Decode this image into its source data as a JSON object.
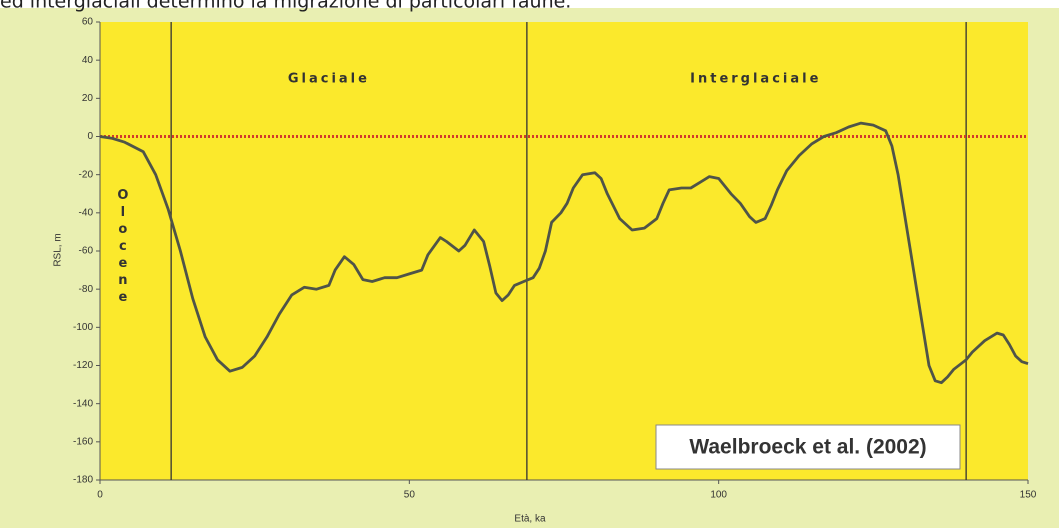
{
  "caption": "ed interglaciali determinò la migrazione di particolari faune.",
  "chart_data": {
    "type": "line",
    "xlabel": "Età, ka",
    "ylabel": "RSL, m",
    "annotation": "Waelbroeck et al. (2002)",
    "period_labels": [
      {
        "text": "Olocene",
        "x": 3.7
      },
      {
        "text": "Glaciale",
        "x": 37
      },
      {
        "text": "Interglaciale",
        "x": 106
      }
    ],
    "dividers": [
      11.5,
      69,
      140
    ],
    "hline": 0,
    "hline_color": "#d23a2a",
    "xlim": [
      0,
      150
    ],
    "xticks": [
      0,
      50,
      100,
      150
    ],
    "ylim": [
      -180,
      60
    ],
    "yticks": [
      60,
      40,
      20,
      0,
      -20,
      -40,
      -60,
      -80,
      -100,
      -120,
      -140,
      -160,
      -180
    ],
    "x": [
      0,
      2,
      4,
      7,
      9,
      11,
      13,
      15,
      17,
      19,
      21,
      23,
      25,
      27,
      29,
      31,
      33,
      35,
      37,
      38,
      39.5,
      41,
      42.5,
      44,
      46,
      48,
      50,
      52,
      53,
      55,
      56,
      58,
      59,
      60.5,
      62,
      63,
      64,
      65,
      66,
      67,
      68.5,
      70,
      71,
      72,
      73,
      74.5,
      75.5,
      76.5,
      78,
      80,
      81,
      82,
      84,
      86,
      88,
      90,
      91,
      92,
      94,
      95.5,
      97,
      98.5,
      100,
      102,
      103.5,
      105,
      106,
      107.5,
      108.5,
      109.5,
      111,
      113,
      115,
      117,
      119,
      121,
      123,
      125,
      127,
      128,
      129,
      130,
      131,
      132,
      133,
      134,
      135,
      136,
      137,
      138,
      140,
      141,
      143,
      145,
      146,
      147,
      148,
      149,
      150
    ],
    "series": [
      {
        "name": "RSL",
        "color": "#4f5448",
        "values": [
          0,
          -1,
          -3,
          -8,
          -20,
          -38,
          -60,
          -85,
          -105,
          -117,
          -123,
          -121,
          -115,
          -105,
          -93,
          -83,
          -79,
          -80,
          -78,
          -70,
          -63,
          -67,
          -75,
          -76,
          -74,
          -74,
          -72,
          -70,
          -62,
          -53,
          -55,
          -60,
          -57,
          -49,
          -55,
          -68,
          -82,
          -86,
          -83,
          -78,
          -76,
          -74,
          -69,
          -60,
          -45,
          -40,
          -35,
          -27,
          -20,
          -19,
          -22,
          -30,
          -43,
          -49,
          -48,
          -43,
          -35,
          -28,
          -27,
          -27,
          -24,
          -21,
          -22,
          -30,
          -35,
          -42,
          -45,
          -43,
          -36,
          -28,
          -18,
          -10,
          -4,
          0,
          2,
          5,
          7,
          6,
          3,
          -5,
          -20,
          -40,
          -60,
          -80,
          -100,
          -120,
          -128,
          -129,
          -126,
          -122,
          -117,
          -113,
          -107,
          -103,
          -104,
          -109,
          -115,
          -118,
          -119
        ]
      }
    ]
  }
}
